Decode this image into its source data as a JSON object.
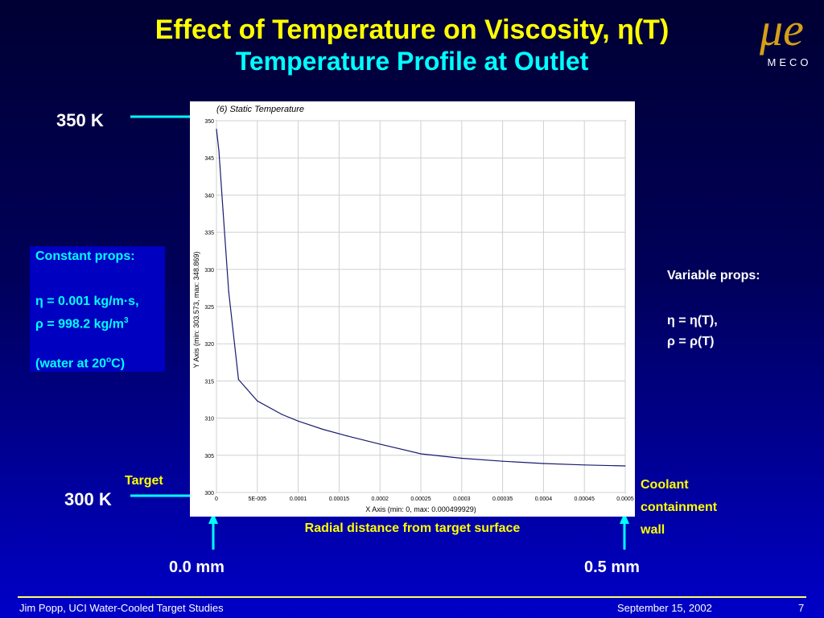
{
  "slide": {
    "title_main": "Effect of Temperature on Viscosity, η(T)",
    "title_sub": "Temperature Profile at Outlet",
    "logo_text": "MECO",
    "logo_mark": "μe",
    "label_350": "350 K",
    "label_300": "300 K",
    "label_target": "Target",
    "label_coolant": [
      "Coolant",
      "containment",
      "wall"
    ],
    "label_radial": "Radial distance from target surface",
    "label_0mm": "0.0 mm",
    "label_05mm": "0.5 mm",
    "constant_props": {
      "heading": "Constant props:",
      "eta": "η = 0.001 kg/m·s,",
      "rho_prefix": "ρ = 998.2 kg/m",
      "rho_sup": "3",
      "water_prefix": "(water at 20",
      "water_sup": "o",
      "water_suffix": "C)"
    },
    "variable_props": {
      "heading": "Variable props:",
      "eta": "η = η(T),",
      "rho": "ρ = ρ(T)"
    },
    "footer_left": "Jim Popp, UCI  Water-Cooled Target Studies",
    "footer_date": "September 15, 2002",
    "footer_page": "7"
  },
  "chart_data": {
    "type": "line",
    "title": "(6) Static Temperature",
    "xlabel": "X Axis (min: 0, max: 0.000499929)",
    "ylabel": "Y Axis (min: 303.573, max: 348.869)",
    "xlim": [
      0,
      0.0005
    ],
    "ylim": [
      300,
      350
    ],
    "grid": true,
    "x_ticks": [
      0,
      5e-05,
      0.0001,
      0.00015,
      0.0002,
      0.00025,
      0.0003,
      0.00035,
      0.0004,
      0.00045,
      0.0005
    ],
    "x_tick_labels": [
      "0",
      "5E-005",
      "0.0001",
      "0.00015",
      "0.0002",
      "0.00025",
      "0.0003",
      "0.00035",
      "0.0004",
      "0.00045",
      "0.0005"
    ],
    "y_ticks": [
      300,
      305,
      310,
      315,
      320,
      325,
      330,
      335,
      340,
      345,
      350
    ],
    "y_tick_labels": [
      "300",
      "305",
      "310",
      "315",
      "320",
      "325",
      "330",
      "335",
      "340",
      "345",
      "350"
    ],
    "series": [
      {
        "x": [
          0,
          3e-06,
          8e-06,
          1.5e-05,
          2.7e-05,
          5e-05,
          8e-05,
          0.0001,
          0.00013,
          0.00016,
          0.0002,
          0.00025,
          0.0003,
          0.00035,
          0.0004,
          0.00045,
          0.000499929
        ],
        "y": [
          348.869,
          346,
          338,
          327,
          315.2,
          312.3,
          310.5,
          309.6,
          308.5,
          307.6,
          306.5,
          305.2,
          304.6,
          304.2,
          303.9,
          303.7,
          303.573
        ]
      }
    ]
  }
}
